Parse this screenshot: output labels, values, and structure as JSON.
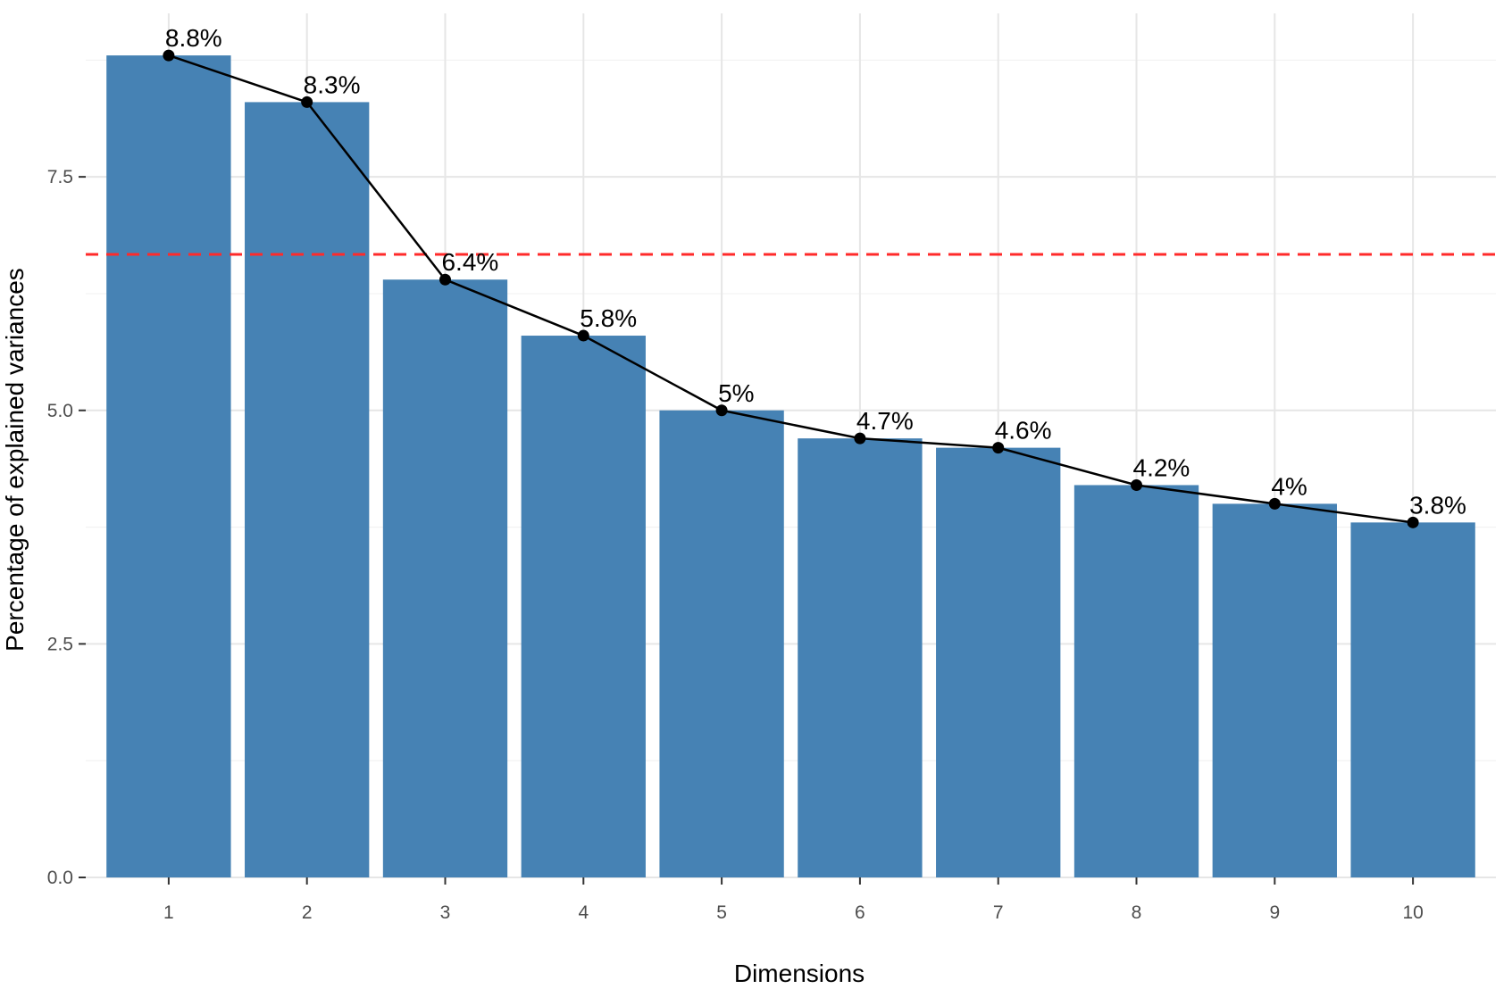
{
  "chart_data": {
    "type": "bar",
    "title": "",
    "xlabel": "Dimensions",
    "ylabel": "Percentage of explained variances",
    "categories": [
      "1",
      "2",
      "3",
      "4",
      "5",
      "6",
      "7",
      "8",
      "9",
      "10"
    ],
    "values": [
      8.8,
      8.3,
      6.4,
      5.8,
      5.0,
      4.7,
      4.6,
      4.2,
      4.0,
      3.8
    ],
    "data_labels": [
      "8.8%",
      "8.3%",
      "6.4%",
      "5.8%",
      "5%",
      "4.7%",
      "4.6%",
      "4.2%",
      "4%",
      "3.8%"
    ],
    "yticks": [
      0.0,
      2.5,
      5.0,
      7.5
    ],
    "ytick_labels": [
      "0.0",
      "2.5",
      "5.0",
      "7.5"
    ],
    "ylim": [
      0,
      9.25
    ],
    "reference_line": {
      "y": 6.67,
      "style": "dashed",
      "color": "#ff2a2a"
    },
    "line_overlay": true,
    "grid": true,
    "legend": "none",
    "colors": {
      "bar": "#4682b4",
      "line": "#000000",
      "points": "#000000",
      "grid_major": "#e6e6e6",
      "grid_minor": "#f0f0f0",
      "reference_line": "#ff2a2a"
    }
  }
}
